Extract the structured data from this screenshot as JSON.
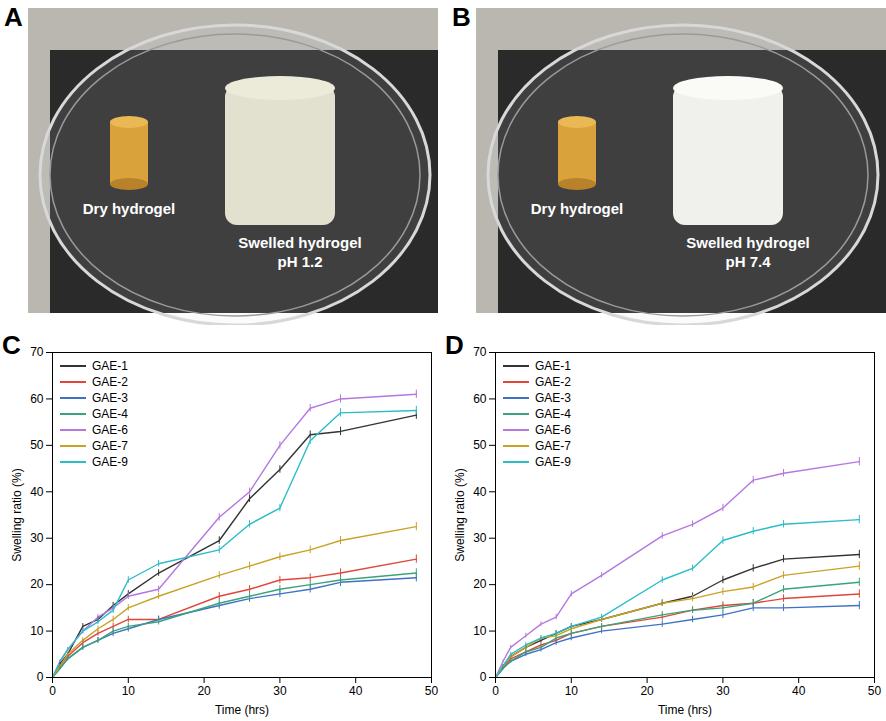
{
  "photos": [
    {
      "label": "A",
      "dry_label": "Dry hydrogel",
      "swelled_label": [
        "Swelled hydrogel",
        "pH 1.2"
      ]
    },
    {
      "label": "B",
      "dry_label": "Dry hydrogel",
      "swelled_label": [
        "Swelled hydrogel",
        "pH 7.4"
      ]
    }
  ],
  "chart_data": [
    {
      "type": "line",
      "title": "C",
      "xlabel": "Time (hrs)",
      "ylabel": "Swelling ratio (%)",
      "x": [
        0,
        1,
        2,
        4,
        6,
        8,
        10,
        14,
        22,
        26,
        30,
        34,
        38,
        48
      ],
      "xlim": [
        0,
        50
      ],
      "xticks": [
        0,
        10,
        20,
        30,
        40,
        50
      ],
      "ylim": [
        0,
        70
      ],
      "yticks": [
        0,
        10,
        20,
        30,
        40,
        50,
        60,
        70
      ],
      "legend": "upper left",
      "series": [
        {
          "name": "GAE-1",
          "color": "#333333",
          "values": [
            0,
            3,
            5,
            11,
            12.5,
            15.5,
            18,
            22.5,
            29.5,
            38.5,
            44.8,
            52.3,
            53,
            56.5
          ],
          "errors": [
            0,
            0.3,
            0.4,
            0.6,
            0.6,
            0.7,
            0.7,
            0.7,
            0.8,
            0.8,
            0.8,
            0.8,
            0.9,
            0.9
          ]
        },
        {
          "name": "GAE-2",
          "color": "#e0463a",
          "values": [
            0,
            2.5,
            4.5,
            7.5,
            9.5,
            11,
            12.5,
            12.5,
            17.5,
            19,
            21,
            21.5,
            22.5,
            25.5
          ],
          "errors": [
            0,
            0.3,
            0.4,
            0.6,
            0.6,
            0.7,
            0.7,
            0.7,
            0.8,
            0.8,
            0.8,
            0.8,
            0.9,
            0.9
          ]
        },
        {
          "name": "GAE-3",
          "color": "#3f72c4",
          "values": [
            0,
            2,
            4,
            6.5,
            8,
            9.5,
            10.5,
            12.5,
            15.5,
            17,
            18,
            19,
            20.5,
            21.5
          ],
          "errors": [
            0,
            0.3,
            0.4,
            0.6,
            0.6,
            0.7,
            0.7,
            0.7,
            0.8,
            0.8,
            0.8,
            0.8,
            0.9,
            0.9
          ]
        },
        {
          "name": "GAE-4",
          "color": "#3aa37a",
          "values": [
            0,
            2,
            4,
            6.5,
            8,
            10,
            11,
            12,
            16,
            17.5,
            19,
            20,
            21,
            22.5
          ],
          "errors": [
            0,
            0.3,
            0.4,
            0.6,
            0.6,
            0.7,
            0.7,
            0.7,
            0.8,
            0.8,
            0.8,
            0.8,
            0.9,
            0.9
          ]
        },
        {
          "name": "GAE-6",
          "color": "#b478e0",
          "values": [
            0,
            3.5,
            6,
            10,
            13,
            15,
            17.5,
            19,
            34.5,
            40,
            50,
            58,
            60,
            61
          ],
          "errors": [
            0,
            0.3,
            0.4,
            0.6,
            0.6,
            0.7,
            0.7,
            0.7,
            0.8,
            0.8,
            0.8,
            0.8,
            0.9,
            0.9
          ]
        },
        {
          "name": "GAE-7",
          "color": "#c9a227",
          "values": [
            0,
            2.5,
            5,
            8,
            10.5,
            12.5,
            15,
            17.5,
            22,
            24,
            26,
            27.5,
            29.5,
            32.5
          ],
          "errors": [
            0,
            0.3,
            0.4,
            0.6,
            0.6,
            0.7,
            0.7,
            0.7,
            0.8,
            0.8,
            0.8,
            0.8,
            0.9,
            0.9
          ]
        },
        {
          "name": "GAE-9",
          "color": "#2bbcc9",
          "values": [
            0,
            3.5,
            6,
            10,
            12,
            14.5,
            21,
            24.5,
            27.5,
            33,
            36.5,
            51,
            57,
            57.5
          ],
          "errors": [
            0,
            0.3,
            0.4,
            0.6,
            0.6,
            0.7,
            0.7,
            0.7,
            0.8,
            0.8,
            0.8,
            0.8,
            0.9,
            0.9
          ]
        }
      ]
    },
    {
      "type": "line",
      "title": "D",
      "xlabel": "Time (hrs)",
      "ylabel": "Swelling ratio (%)",
      "x": [
        0,
        1,
        2,
        4,
        6,
        8,
        10,
        14,
        22,
        26,
        30,
        34,
        38,
        48
      ],
      "xlim": [
        0,
        50
      ],
      "xticks": [
        0,
        10,
        20,
        30,
        40,
        50
      ],
      "ylim": [
        0,
        70
      ],
      "yticks": [
        0,
        10,
        20,
        30,
        40,
        50,
        60,
        70
      ],
      "legend": "upper left",
      "series": [
        {
          "name": "GAE-1",
          "color": "#333333",
          "values": [
            0,
            2.5,
            4.5,
            6.5,
            8,
            9.5,
            11,
            12.5,
            16,
            17.5,
            21,
            23.5,
            25.5,
            26.5
          ],
          "errors": [
            0,
            0.3,
            0.4,
            0.5,
            0.5,
            0.6,
            0.6,
            0.6,
            0.7,
            0.7,
            0.8,
            0.8,
            0.8,
            0.9
          ]
        },
        {
          "name": "GAE-2",
          "color": "#e0463a",
          "values": [
            0,
            2,
            4,
            5.5,
            7,
            8,
            9.5,
            11,
            13,
            14.5,
            15.5,
            16,
            17,
            18
          ],
          "errors": [
            0,
            0.3,
            0.4,
            0.5,
            0.5,
            0.6,
            0.6,
            0.6,
            0.7,
            0.7,
            0.8,
            0.8,
            0.8,
            0.9
          ]
        },
        {
          "name": "GAE-3",
          "color": "#3f72c4",
          "values": [
            0,
            2,
            3.5,
            5,
            6,
            7.5,
            8.5,
            10,
            11.5,
            12.5,
            13.5,
            15,
            15,
            15.5
          ],
          "errors": [
            0,
            0.3,
            0.4,
            0.5,
            0.5,
            0.6,
            0.6,
            0.6,
            0.7,
            0.7,
            0.8,
            0.8,
            0.8,
            0.9
          ]
        },
        {
          "name": "GAE-4",
          "color": "#3aa37a",
          "values": [
            0,
            2,
            3.5,
            5.5,
            6.5,
            8.5,
            9.5,
            11,
            13.5,
            14.5,
            15,
            16,
            19,
            20.5
          ],
          "errors": [
            0,
            0.3,
            0.4,
            0.5,
            0.5,
            0.6,
            0.6,
            0.6,
            0.7,
            0.7,
            0.8,
            0.8,
            0.8,
            0.9
          ]
        },
        {
          "name": "GAE-6",
          "color": "#b478e0",
          "values": [
            0,
            3.5,
            6.5,
            9,
            11.5,
            13,
            18,
            22,
            30.5,
            33,
            36.5,
            42.5,
            44,
            46.5
          ],
          "errors": [
            0,
            0.3,
            0.4,
            0.5,
            0.5,
            0.6,
            0.6,
            0.6,
            0.7,
            0.7,
            0.8,
            0.8,
            0.8,
            0.9
          ]
        },
        {
          "name": "GAE-7",
          "color": "#c9a227",
          "values": [
            0,
            2.5,
            4.5,
            6.5,
            8.5,
            9,
            10.5,
            12.5,
            16,
            17,
            18.5,
            19.5,
            22,
            24
          ],
          "errors": [
            0,
            0.3,
            0.4,
            0.5,
            0.5,
            0.6,
            0.6,
            0.6,
            0.7,
            0.7,
            0.8,
            0.8,
            0.8,
            0.9
          ]
        },
        {
          "name": "GAE-9",
          "color": "#2bbcc9",
          "values": [
            0,
            2.5,
            5,
            7,
            8.5,
            9.5,
            11,
            13,
            21,
            23.5,
            29.5,
            31.5,
            33,
            34
          ],
          "errors": [
            0,
            0.3,
            0.4,
            0.5,
            0.5,
            0.6,
            0.6,
            0.6,
            0.7,
            0.7,
            0.8,
            0.8,
            0.8,
            0.9
          ]
        }
      ]
    }
  ]
}
